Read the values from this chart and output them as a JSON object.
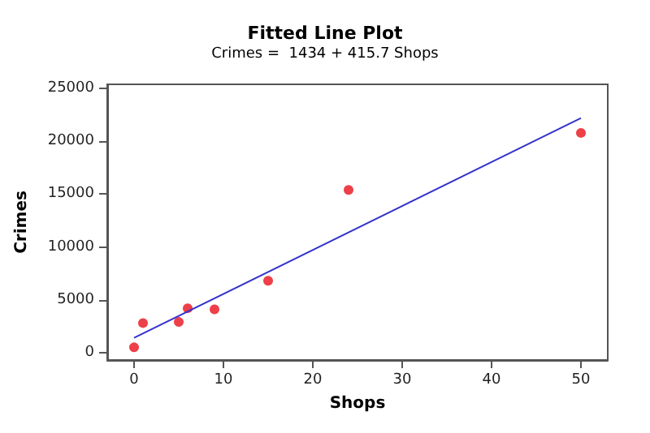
{
  "chart_data": {
    "type": "scatter",
    "title": "Fitted Line Plot",
    "subtitle": "Crimes =  1434 + 415.7 Shops",
    "xlabel": "Shops",
    "ylabel": "Crimes",
    "series": [
      {
        "color": "#e8101a",
        "marker": "circle",
        "x": [
          0,
          1,
          5,
          6,
          9,
          15,
          24,
          50
        ],
        "values": [
          500,
          2800,
          2900,
          4200,
          4100,
          6800,
          15400,
          20800
        ]
      },
      {
        "type": "line",
        "color": "#3333cc",
        "marker": "none",
        "x": [
          0,
          50
        ],
        "values": [
          1400,
          22200
        ]
      }
    ],
    "xlim": [
      -3,
      53
    ],
    "xticks": [
      0,
      10,
      20,
      30,
      40,
      50
    ],
    "ylim": [
      -700,
      25400
    ],
    "yticks": [
      0,
      5000,
      10000,
      15000,
      20000,
      25000
    ],
    "grid": false
  }
}
